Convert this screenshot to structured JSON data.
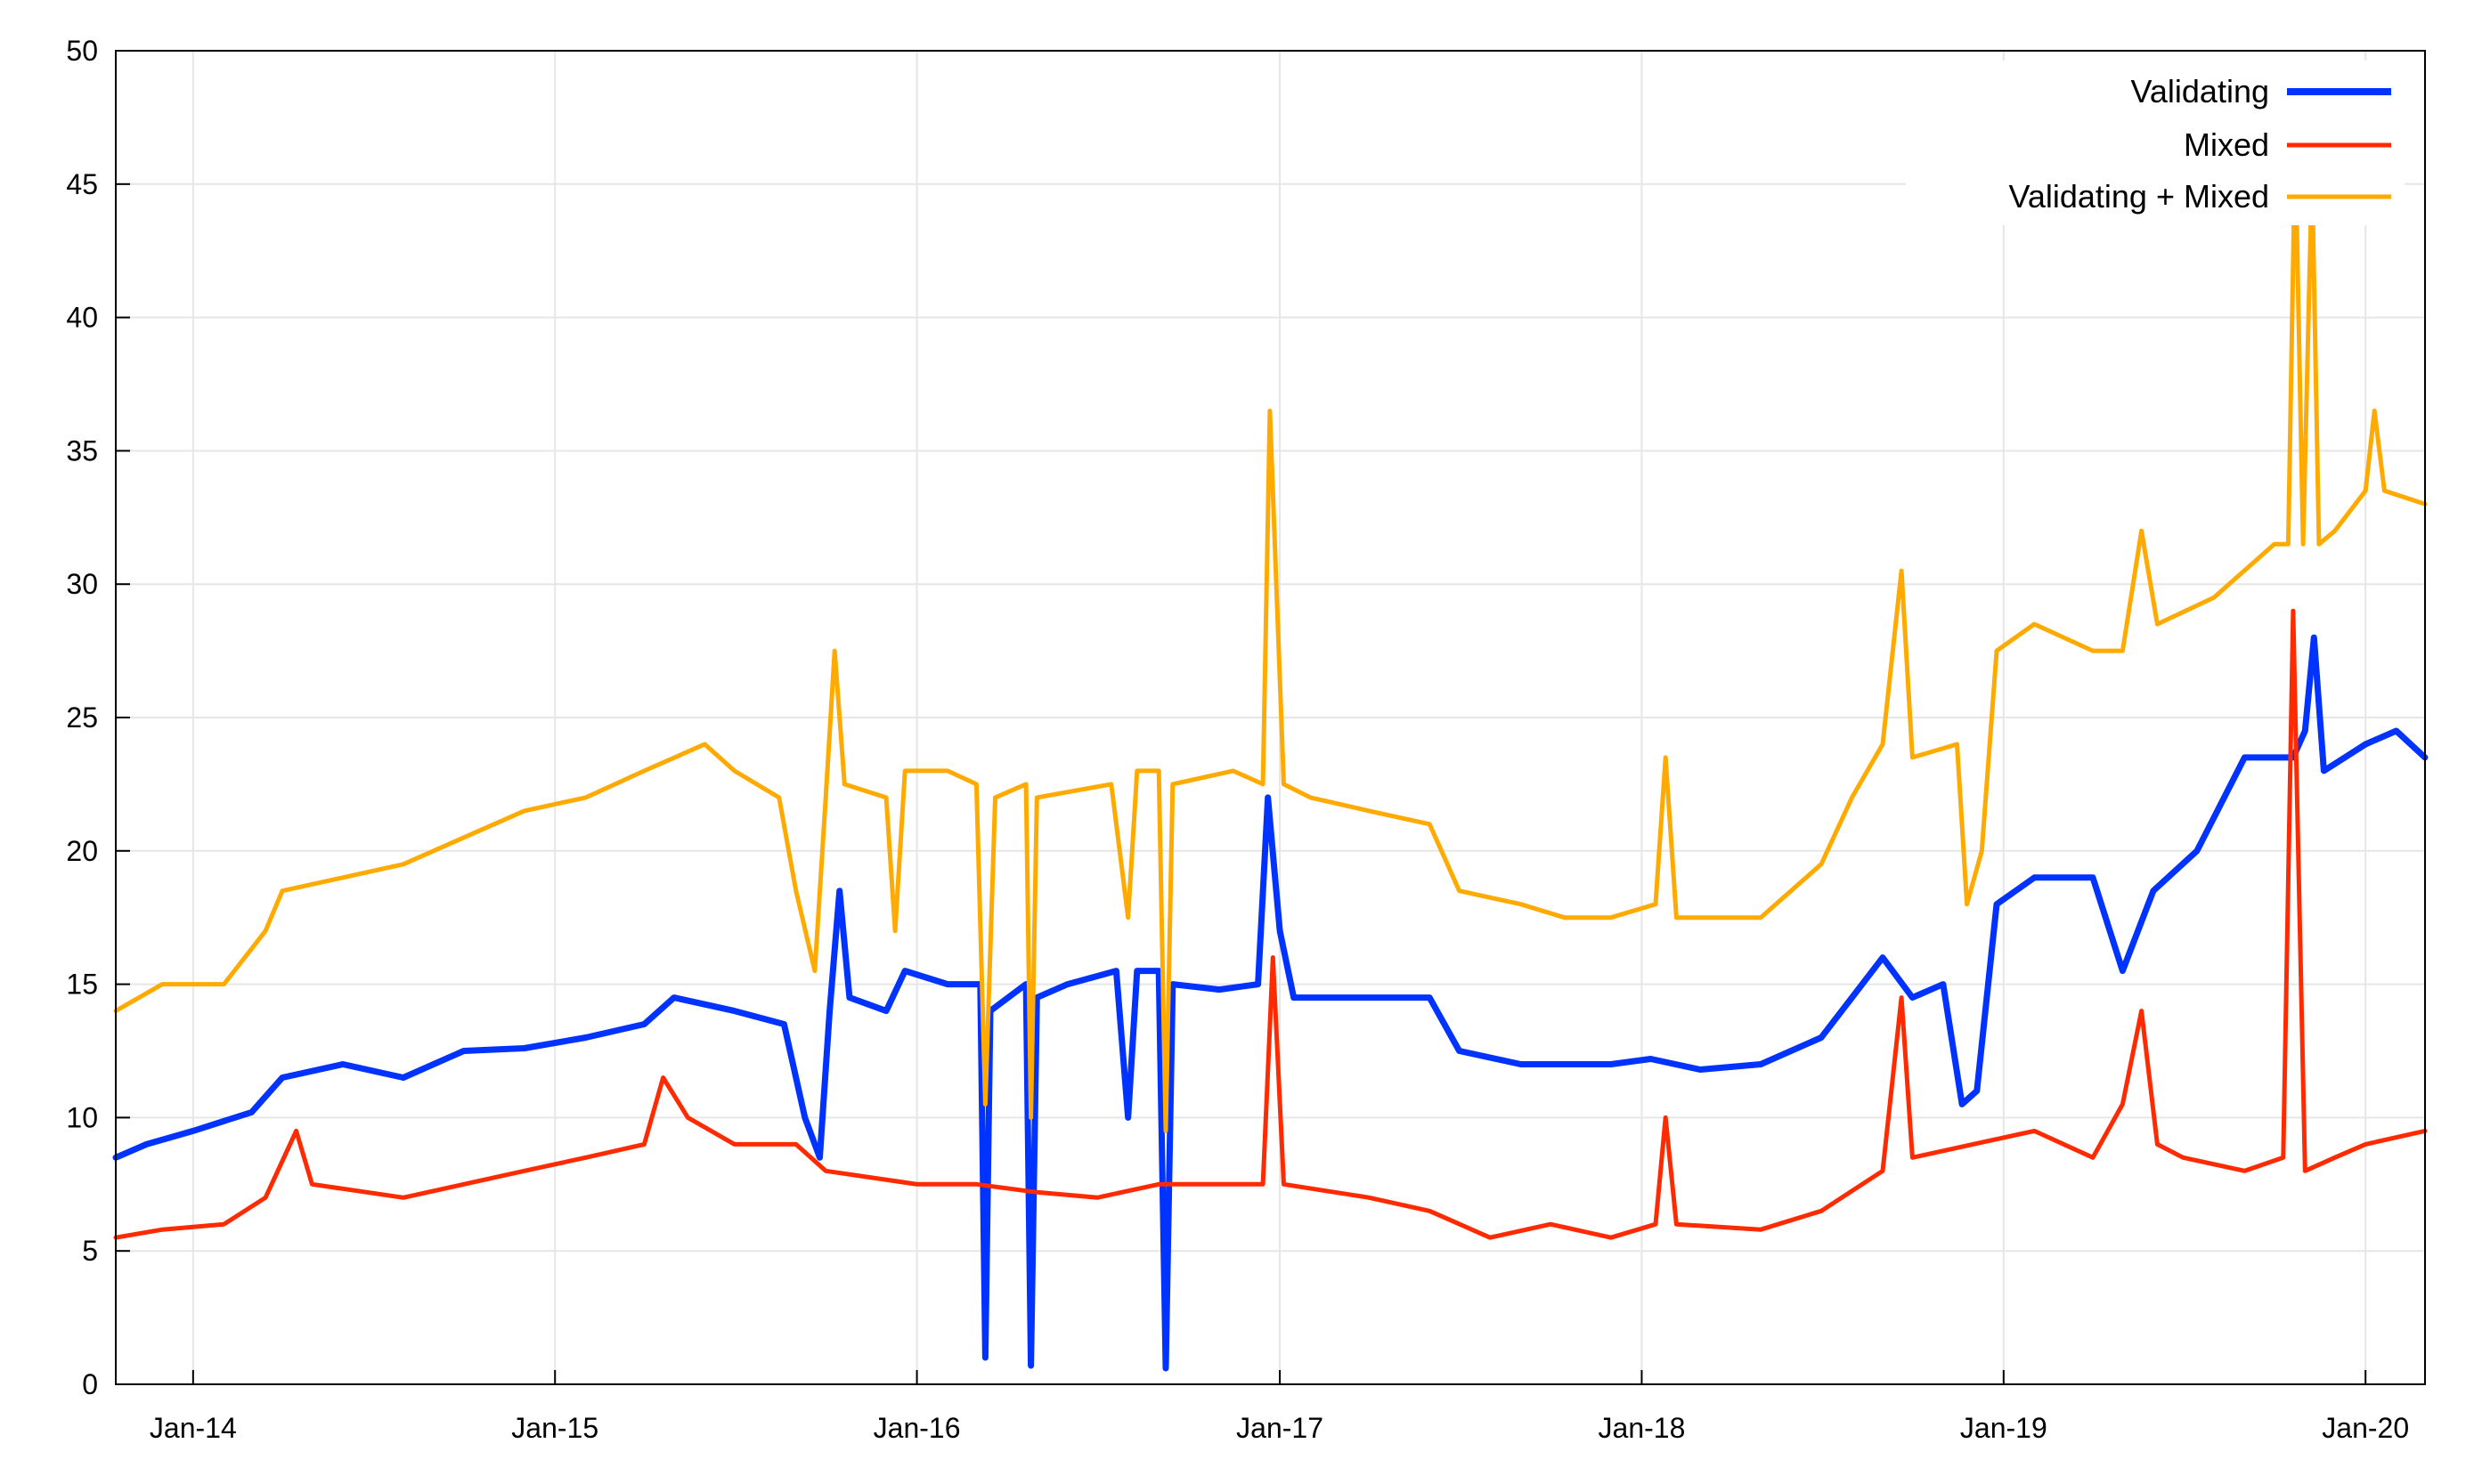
{
  "chart_data": {
    "type": "line",
    "title": "",
    "xlabel": "",
    "ylabel": "",
    "ylim": [
      0,
      50
    ],
    "xlim": [
      "2013-10-15",
      "2020-03-01"
    ],
    "yticks": [
      0,
      5,
      10,
      15,
      20,
      25,
      30,
      35,
      40,
      45,
      50
    ],
    "xticks": [
      {
        "date": "2014-01-01",
        "label": "Jan-14"
      },
      {
        "date": "2015-01-01",
        "label": "Jan-15"
      },
      {
        "date": "2016-01-01",
        "label": "Jan-16"
      },
      {
        "date": "2017-01-01",
        "label": "Jan-17"
      },
      {
        "date": "2018-01-01",
        "label": "Jan-18"
      },
      {
        "date": "2019-01-01",
        "label": "Jan-19"
      },
      {
        "date": "2020-01-01",
        "label": "Jan-20"
      }
    ],
    "grid": true,
    "legend_position": "top-right",
    "series": [
      {
        "name": "Validating",
        "color": "#0033ff",
        "points": [
          [
            "2013-10-15",
            8.5
          ],
          [
            "2013-11-15",
            9.0
          ],
          [
            "2014-01-01",
            9.5
          ],
          [
            "2014-03-01",
            10.2
          ],
          [
            "2014-04-01",
            11.5
          ],
          [
            "2014-06-01",
            12.0
          ],
          [
            "2014-08-01",
            11.5
          ],
          [
            "2014-10-01",
            12.5
          ],
          [
            "2014-12-01",
            12.6
          ],
          [
            "2015-02-01",
            13.0
          ],
          [
            "2015-04-01",
            13.5
          ],
          [
            "2015-05-01",
            14.5
          ],
          [
            "2015-07-01",
            14.0
          ],
          [
            "2015-08-20",
            13.5
          ],
          [
            "2015-09-10",
            10.0
          ],
          [
            "2015-09-25",
            8.5
          ],
          [
            "2015-10-05",
            14.0
          ],
          [
            "2015-10-15",
            18.5
          ],
          [
            "2015-10-25",
            14.5
          ],
          [
            "2015-12-01",
            14.0
          ],
          [
            "2015-12-20",
            15.5
          ],
          [
            "2016-02-01",
            15.0
          ],
          [
            "2016-03-05",
            15.0
          ],
          [
            "2016-03-10",
            1.0
          ],
          [
            "2016-03-15",
            14.0
          ],
          [
            "2016-04-20",
            15.0
          ],
          [
            "2016-04-25",
            0.7
          ],
          [
            "2016-05-01",
            14.5
          ],
          [
            "2016-06-01",
            15.0
          ],
          [
            "2016-07-20",
            15.5
          ],
          [
            "2016-08-01",
            10.0
          ],
          [
            "2016-08-10",
            15.5
          ],
          [
            "2016-09-01",
            15.5
          ],
          [
            "2016-09-08",
            0.6
          ],
          [
            "2016-09-15",
            15.0
          ],
          [
            "2016-11-01",
            14.8
          ],
          [
            "2016-12-10",
            15.0
          ],
          [
            "2016-12-20",
            22.0
          ],
          [
            "2017-01-01",
            17.0
          ],
          [
            "2017-01-15",
            14.5
          ],
          [
            "2017-04-01",
            14.5
          ],
          [
            "2017-06-01",
            14.5
          ],
          [
            "2017-07-01",
            12.5
          ],
          [
            "2017-09-01",
            12.0
          ],
          [
            "2017-10-01",
            12.0
          ],
          [
            "2017-12-01",
            12.0
          ],
          [
            "2018-01-10",
            12.2
          ],
          [
            "2018-03-01",
            11.8
          ],
          [
            "2018-05-01",
            12.0
          ],
          [
            "2018-07-01",
            13.0
          ],
          [
            "2018-08-01",
            14.5
          ],
          [
            "2018-09-01",
            16.0
          ],
          [
            "2018-10-01",
            14.5
          ],
          [
            "2018-11-01",
            15.0
          ],
          [
            "2018-11-20",
            10.5
          ],
          [
            "2018-12-05",
            11.0
          ],
          [
            "2018-12-25",
            18.0
          ],
          [
            "2019-02-01",
            19.0
          ],
          [
            "2019-04-01",
            19.0
          ],
          [
            "2019-05-01",
            15.5
          ],
          [
            "2019-06-01",
            18.5
          ],
          [
            "2019-07-15",
            20.0
          ],
          [
            "2019-09-01",
            23.5
          ],
          [
            "2019-10-20",
            23.5
          ],
          [
            "2019-11-01",
            24.5
          ],
          [
            "2019-11-10",
            28.0
          ],
          [
            "2019-11-20",
            23.0
          ],
          [
            "2020-01-01",
            24.0
          ],
          [
            "2020-02-01",
            24.5
          ],
          [
            "2020-03-01",
            23.5
          ]
        ]
      },
      {
        "name": "Mixed",
        "color": "#ff2a00",
        "points": [
          [
            "2013-10-15",
            5.5
          ],
          [
            "2013-12-01",
            5.8
          ],
          [
            "2014-02-01",
            6.0
          ],
          [
            "2014-03-15",
            7.0
          ],
          [
            "2014-04-15",
            9.5
          ],
          [
            "2014-05-01",
            7.5
          ],
          [
            "2014-08-01",
            7.0
          ],
          [
            "2014-10-01",
            7.5
          ],
          [
            "2014-12-01",
            8.0
          ],
          [
            "2015-02-01",
            8.5
          ],
          [
            "2015-04-01",
            9.0
          ],
          [
            "2015-04-20",
            11.5
          ],
          [
            "2015-05-15",
            10.0
          ],
          [
            "2015-07-01",
            9.0
          ],
          [
            "2015-09-01",
            9.0
          ],
          [
            "2015-10-01",
            8.0
          ],
          [
            "2016-01-01",
            7.5
          ],
          [
            "2016-03-01",
            7.5
          ],
          [
            "2016-05-01",
            7.2
          ],
          [
            "2016-07-01",
            7.0
          ],
          [
            "2016-09-01",
            7.5
          ],
          [
            "2016-12-15",
            7.5
          ],
          [
            "2016-12-25",
            16.0
          ],
          [
            "2017-01-05",
            7.5
          ],
          [
            "2017-04-01",
            7.0
          ],
          [
            "2017-06-01",
            6.5
          ],
          [
            "2017-08-01",
            5.5
          ],
          [
            "2017-10-01",
            6.0
          ],
          [
            "2017-12-01",
            5.5
          ],
          [
            "2018-01-15",
            6.0
          ],
          [
            "2018-01-25",
            10.0
          ],
          [
            "2018-02-05",
            6.0
          ],
          [
            "2018-05-01",
            5.8
          ],
          [
            "2018-07-01",
            6.5
          ],
          [
            "2018-09-01",
            8.0
          ],
          [
            "2018-09-20",
            14.5
          ],
          [
            "2018-10-01",
            8.5
          ],
          [
            "2018-12-01",
            9.0
          ],
          [
            "2019-02-01",
            9.5
          ],
          [
            "2019-04-01",
            8.5
          ],
          [
            "2019-05-01",
            10.5
          ],
          [
            "2019-05-20",
            14.0
          ],
          [
            "2019-06-05",
            9.0
          ],
          [
            "2019-07-01",
            8.5
          ],
          [
            "2019-09-01",
            8.0
          ],
          [
            "2019-10-10",
            8.5
          ],
          [
            "2019-10-20",
            29.0
          ],
          [
            "2019-11-01",
            8.0
          ],
          [
            "2019-12-01",
            8.5
          ],
          [
            "2020-01-01",
            9.0
          ],
          [
            "2020-03-01",
            9.5
          ]
        ]
      },
      {
        "name": "Validating + Mixed",
        "color": "#ffaa00",
        "points": [
          [
            "2013-10-15",
            14.0
          ],
          [
            "2013-12-01",
            15.0
          ],
          [
            "2014-02-01",
            15.0
          ],
          [
            "2014-03-15",
            17.0
          ],
          [
            "2014-04-01",
            18.5
          ],
          [
            "2014-06-01",
            19.0
          ],
          [
            "2014-08-01",
            19.5
          ],
          [
            "2014-10-01",
            20.5
          ],
          [
            "2014-12-01",
            21.5
          ],
          [
            "2015-02-01",
            22.0
          ],
          [
            "2015-04-01",
            23.0
          ],
          [
            "2015-06-01",
            24.0
          ],
          [
            "2015-07-01",
            23.0
          ],
          [
            "2015-08-15",
            22.0
          ],
          [
            "2015-09-01",
            18.5
          ],
          [
            "2015-09-20",
            15.5
          ],
          [
            "2015-10-01",
            22.0
          ],
          [
            "2015-10-10",
            27.5
          ],
          [
            "2015-10-20",
            22.5
          ],
          [
            "2015-12-01",
            22.0
          ],
          [
            "2015-12-10",
            17.0
          ],
          [
            "2015-12-20",
            23.0
          ],
          [
            "2016-02-01",
            23.0
          ],
          [
            "2016-03-01",
            22.5
          ],
          [
            "2016-03-10",
            10.5
          ],
          [
            "2016-03-20",
            22.0
          ],
          [
            "2016-04-20",
            22.5
          ],
          [
            "2016-04-25",
            10.0
          ],
          [
            "2016-05-01",
            22.0
          ],
          [
            "2016-07-15",
            22.5
          ],
          [
            "2016-08-01",
            17.5
          ],
          [
            "2016-08-10",
            23.0
          ],
          [
            "2016-09-01",
            23.0
          ],
          [
            "2016-09-08",
            9.5
          ],
          [
            "2016-09-15",
            22.5
          ],
          [
            "2016-11-15",
            23.0
          ],
          [
            "2016-12-15",
            22.5
          ],
          [
            "2016-12-22",
            36.5
          ],
          [
            "2017-01-05",
            22.5
          ],
          [
            "2017-02-01",
            22.0
          ],
          [
            "2017-04-01",
            21.5
          ],
          [
            "2017-06-01",
            21.0
          ],
          [
            "2017-07-01",
            18.5
          ],
          [
            "2017-09-01",
            18.0
          ],
          [
            "2017-10-15",
            17.5
          ],
          [
            "2017-12-01",
            17.5
          ],
          [
            "2018-01-15",
            18.0
          ],
          [
            "2018-01-25",
            23.5
          ],
          [
            "2018-02-05",
            17.5
          ],
          [
            "2018-05-01",
            17.5
          ],
          [
            "2018-07-01",
            19.5
          ],
          [
            "2018-08-01",
            22.0
          ],
          [
            "2018-09-01",
            24.0
          ],
          [
            "2018-09-20",
            30.5
          ],
          [
            "2018-10-01",
            23.5
          ],
          [
            "2018-11-15",
            24.0
          ],
          [
            "2018-11-25",
            18.0
          ],
          [
            "2018-12-10",
            20.0
          ],
          [
            "2018-12-25",
            27.5
          ],
          [
            "2019-02-01",
            28.5
          ],
          [
            "2019-04-01",
            27.5
          ],
          [
            "2019-05-01",
            27.5
          ],
          [
            "2019-05-20",
            32.0
          ],
          [
            "2019-06-05",
            28.5
          ],
          [
            "2019-08-01",
            29.5
          ],
          [
            "2019-10-01",
            31.5
          ],
          [
            "2019-10-15",
            31.5
          ],
          [
            "2019-10-22",
            46.5
          ],
          [
            "2019-10-30",
            31.5
          ],
          [
            "2019-11-08",
            45.5
          ],
          [
            "2019-11-15",
            31.5
          ],
          [
            "2019-12-01",
            32.0
          ],
          [
            "2020-01-01",
            33.5
          ],
          [
            "2020-01-10",
            36.5
          ],
          [
            "2020-01-20",
            33.5
          ],
          [
            "2020-03-01",
            33.0
          ]
        ]
      }
    ]
  }
}
